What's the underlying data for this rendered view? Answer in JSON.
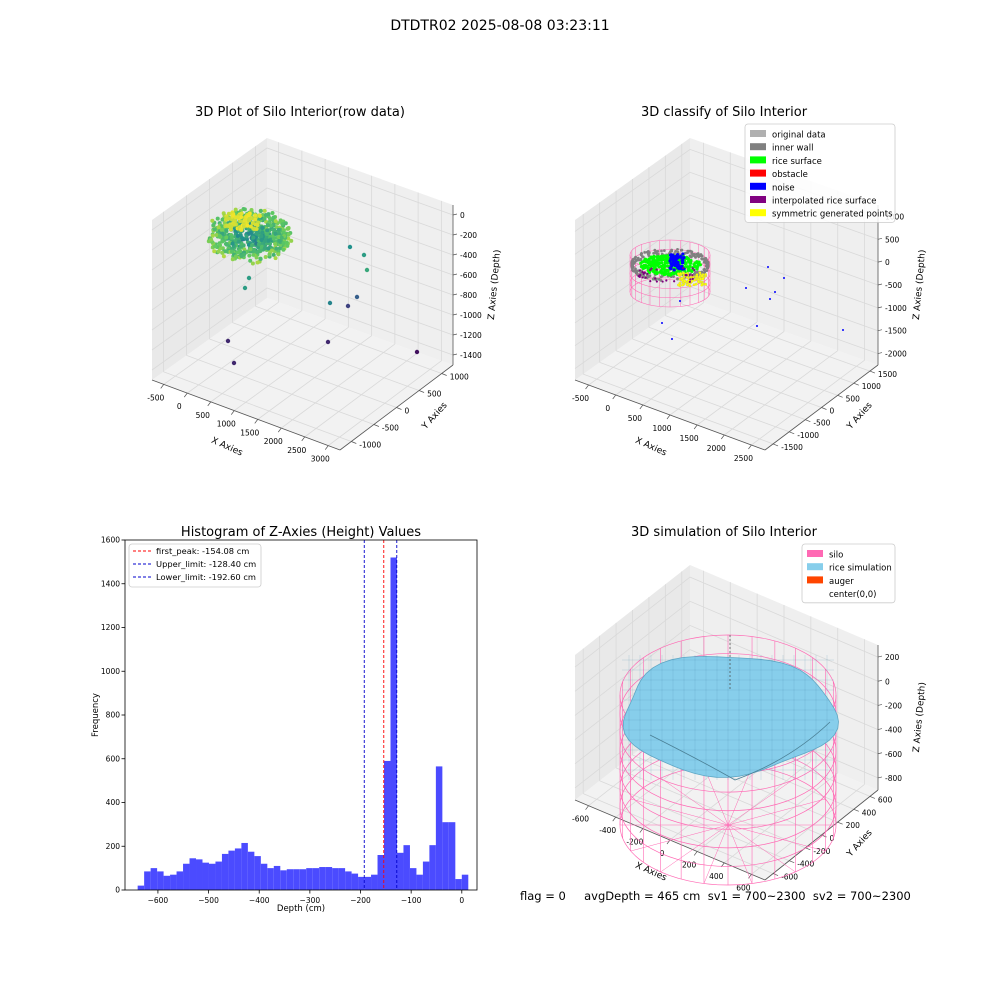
{
  "figure": {
    "suptitle": "DTDTR02 2025-08-08 03:23:11",
    "footer": "flag = 0     avgDepth = 465 cm  sv1 = 700~2300  sv2 = 700~2300"
  },
  "colors": {
    "histogram_bar": "#4b4bff",
    "peak_line": "#ff0000",
    "limit_line": "#0000cc",
    "silo_wire": "#ff69b4",
    "rice_surface": "#87ceeb",
    "pane": "#f2f2f2",
    "grid": "#d9d9d9"
  },
  "chart_data": [
    {
      "type": "scatter3d",
      "title": "3D Plot of Silo Interior(row data)",
      "xlabel": "X Axies",
      "ylabel": "Y Axies",
      "zlabel": "Z Axies (Depth)",
      "xticks": [
        "-500",
        "0",
        "500",
        "1000",
        "1500",
        "2000",
        "2500",
        "3000"
      ],
      "yticks": [
        "-1000",
        "-500",
        "0",
        "500",
        "1000"
      ],
      "zticks": [
        "0",
        "-200",
        "-400",
        "-600",
        "-800",
        "-1000",
        "-1200",
        "-1400"
      ],
      "colormap": "viridis"
    },
    {
      "type": "scatter3d",
      "title": "3D classify of Silo Interior",
      "xlabel": "X Axies",
      "ylabel": "Y Axies",
      "zlabel": "Z Axies (Depth)",
      "xticks": [
        "-500",
        "0",
        "500",
        "1000",
        "1500",
        "2000",
        "2500"
      ],
      "yticks": [
        "-1500",
        "-1000",
        "-500",
        "0",
        "500",
        "1000",
        "1500"
      ],
      "zticks": [
        "1000",
        "500",
        "0",
        "-500",
        "-1000",
        "-1500",
        "-2000"
      ],
      "legend_position": "top-right",
      "legend": [
        {
          "label": "original data",
          "color": "#b0b0b0"
        },
        {
          "label": "inner wall",
          "color": "#808080"
        },
        {
          "label": "rice surface",
          "color": "#00ff00"
        },
        {
          "label": "obstacle",
          "color": "#ff0000"
        },
        {
          "label": "noise",
          "color": "#0000ff"
        },
        {
          "label": "interpolated rice surface",
          "color": "#800080"
        },
        {
          "label": "symmetric generated points",
          "color": "#ffff00"
        }
      ]
    },
    {
      "type": "bar",
      "title": "Histogram of Z-Axies (Height) Values",
      "xlabel": "Depth (cm)",
      "ylabel": "Frequency",
      "xlim": [
        -665,
        30
      ],
      "ylim": [
        0,
        1600
      ],
      "xticks": [
        -600,
        -500,
        -400,
        -300,
        -200,
        -100,
        0
      ],
      "yticks": [
        0,
        200,
        400,
        600,
        800,
        1000,
        1200,
        1400,
        1600
      ],
      "grid": false,
      "legend_position": "top-left",
      "bins": {
        "start": -640,
        "width": 12.8,
        "counts": [
          20,
          85,
          100,
          85,
          65,
          70,
          85,
          120,
          145,
          140,
          125,
          120,
          130,
          165,
          180,
          190,
          215,
          175,
          155,
          120,
          100,
          110,
          90,
          95,
          95,
          95,
          100,
          100,
          105,
          105,
          100,
          100,
          85,
          75,
          60,
          60,
          70,
          160,
          590,
          1520,
          170,
          205,
          100,
          70,
          130,
          205,
          565,
          310,
          310,
          50,
          70
        ]
      },
      "lines": [
        {
          "label": "first_peak: -154.08 cm",
          "x": -154.08,
          "color": "#ff0000"
        },
        {
          "label": "Upper_limit: -128.40 cm",
          "x": -128.4,
          "color": "#0000cc"
        },
        {
          "label": "Lower_limit: -192.60 cm",
          "x": -192.6,
          "color": "#0000cc"
        }
      ]
    },
    {
      "type": "surface3d",
      "title": "3D simulation of Silo Interior",
      "xlabel": "X Axies",
      "ylabel": "Y Axies",
      "zlabel": "Z Axies (Depth)",
      "xticks": [
        "-600",
        "-400",
        "-200",
        "0",
        "200",
        "400",
        "600"
      ],
      "yticks": [
        "-600",
        "-400",
        "-200",
        "0",
        "200",
        "400",
        "600"
      ],
      "zticks": [
        "200",
        "0",
        "-200",
        "-400",
        "-600",
        "-800"
      ],
      "legend_position": "top-right",
      "legend": [
        {
          "label": "silo",
          "color": "#ff69b4"
        },
        {
          "label": "rice simulation",
          "color": "#87ceeb"
        },
        {
          "label": "auger",
          "color": "#ff4500"
        },
        {
          "label": "center(0,0)",
          "color": "#ffffff"
        }
      ]
    }
  ]
}
